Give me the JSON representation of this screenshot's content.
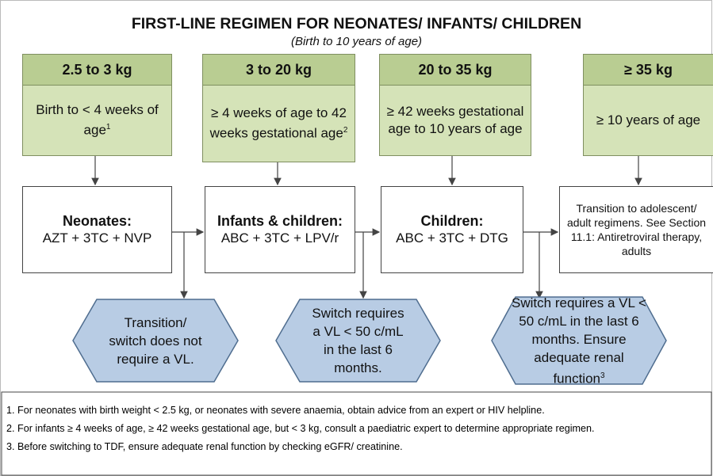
{
  "title": "FIRST-LINE REGIMEN FOR NEONATES/ INFANTS/ CHILDREN",
  "subtitle": "(Birth to 10 years of age)",
  "columns": [
    {
      "weight": "2.5 to 3 kg",
      "age": "Birth to < 4 weeks of age",
      "age_note": "1",
      "regimen_label": "Neonates:",
      "regimen": "AZT + 3TC + NVP"
    },
    {
      "weight": "3 to 20 kg",
      "age": "≥ 4 weeks of age to 42 weeks gestational age",
      "age_note": "2",
      "regimen_label": "Infants & children:",
      "regimen": "ABC + 3TC + LPV/r"
    },
    {
      "weight": "20 to 35 kg",
      "age": "≥ 42 weeks gestational age to 10 years of age",
      "regimen_label": "Children:",
      "regimen": "ABC + 3TC + DTG"
    },
    {
      "weight": "≥ 35 kg",
      "age": "≥ 10 years of age",
      "regimen": "Transition to adolescent/ adult regimens. See Section 11.1: Antiretroviral therapy, adults"
    }
  ],
  "switch_notes": [
    {
      "text": "Transition/ switch does not require a VL."
    },
    {
      "text": "Switch requires a VL < 50 c/mL in the last 6 months."
    },
    {
      "text": "Switch requires a VL < 50 c/mL in the last 6 months. Ensure adequate renal function",
      "note": "3"
    }
  ],
  "footnotes": [
    "1. For neonates with birth weight < 2.5 kg, or neonates with severe anaemia, obtain advice from an expert or HIV helpline.",
    "2. For infants ≥ 4 weeks of age, ≥ 42 weeks gestational age, but < 3 kg, consult a paediatric expert to determine appropriate regimen.",
    "3. Before switching to TDF, ensure adequate renal function by checking eGFR/ creatinine."
  ]
}
